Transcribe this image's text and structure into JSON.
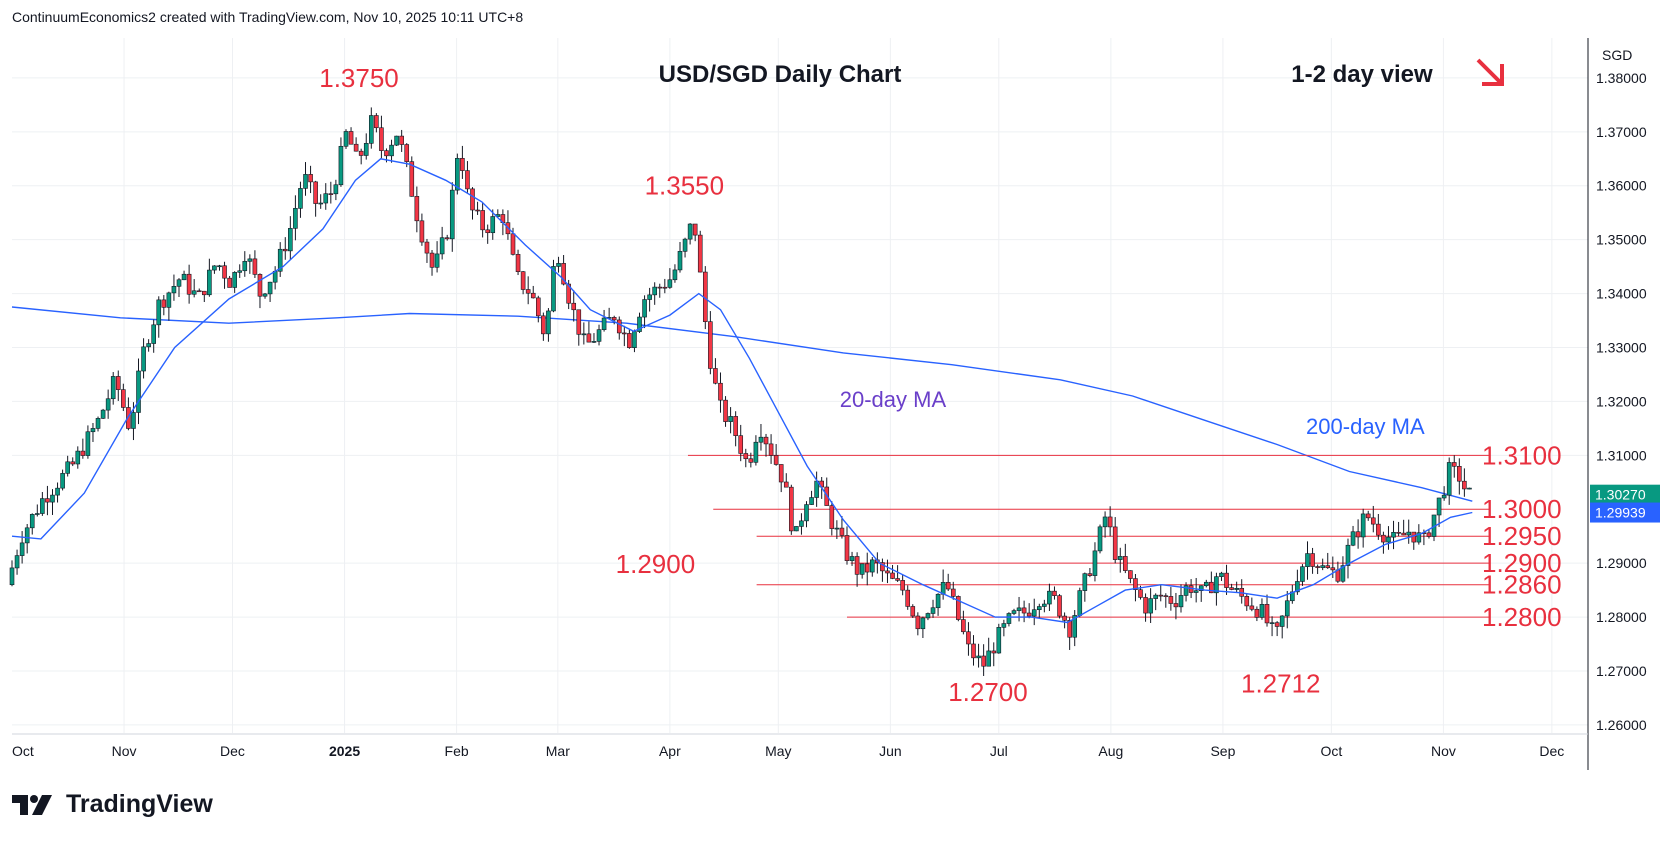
{
  "header": {
    "text": "ContinuumEconomics2 created with TradingView.com, Nov 10, 2025 10:11 UTC+8"
  },
  "logo": {
    "text": "TradingView",
    "icon": "tradingview-logo-icon"
  },
  "chart_data": {
    "type": "candlestick",
    "title": "USD/SGD Daily Chart",
    "subtitle": "1-2 day view",
    "direction_arrow": "down-right-arrow",
    "currency_label": "SGD",
    "y_ticks": [
      "1.38000",
      "1.37000",
      "1.36000",
      "1.35000",
      "1.34000",
      "1.33000",
      "1.32000",
      "1.31000",
      "1.29000",
      "1.28000",
      "1.27000",
      "1.26000"
    ],
    "ylim": [
      1.2585,
      1.3874
    ],
    "x_ticks": [
      {
        "label": "Oct",
        "day": -40,
        "bold": false
      },
      {
        "label": "Nov",
        "day": 31,
        "bold": false
      },
      {
        "label": "Dec",
        "day": 61,
        "bold": false
      },
      {
        "label": "2025",
        "day": 92,
        "bold": true
      },
      {
        "label": "Feb",
        "day": 123,
        "bold": false
      },
      {
        "label": "Mar",
        "day": 151,
        "bold": false
      },
      {
        "label": "Apr",
        "day": 182,
        "bold": false
      },
      {
        "label": "May",
        "day": 212,
        "bold": false
      },
      {
        "label": "Jun",
        "day": 243,
        "bold": false
      },
      {
        "label": "Jul",
        "day": 273,
        "bold": false
      },
      {
        "label": "Aug",
        "day": 304,
        "bold": false
      },
      {
        "label": "Sep",
        "day": 335,
        "bold": false
      },
      {
        "label": "Oct",
        "day": 365,
        "bold": false
      },
      {
        "label": "Nov",
        "day": 396,
        "bold": false
      },
      {
        "label": "Dec",
        "day": 426,
        "bold": false
      }
    ],
    "xlim": [
      0,
      436
    ],
    "colors": {
      "up": "#089981",
      "down": "#f23645",
      "ma": "#2962ff",
      "level": "#e8303f",
      "ma20_label": "#6a3fc9",
      "ma200_label": "#2962ff"
    },
    "price_path": [
      [
        0,
        1.286
      ],
      [
        4,
        1.295
      ],
      [
        10,
        1.302
      ],
      [
        18,
        1.308
      ],
      [
        25,
        1.316
      ],
      [
        30,
        1.324
      ],
      [
        34,
        1.315
      ],
      [
        38,
        1.33
      ],
      [
        42,
        1.338
      ],
      [
        48,
        1.343
      ],
      [
        53,
        1.339
      ],
      [
        58,
        1.346
      ],
      [
        62,
        1.342
      ],
      [
        66,
        1.348
      ],
      [
        70,
        1.34
      ],
      [
        74,
        1.344
      ],
      [
        78,
        1.351
      ],
      [
        82,
        1.362
      ],
      [
        86,
        1.356
      ],
      [
        90,
        1.359
      ],
      [
        94,
        1.37
      ],
      [
        97,
        1.364
      ],
      [
        101,
        1.372
      ],
      [
        104,
        1.366
      ],
      [
        108,
        1.37
      ],
      [
        111,
        1.362
      ],
      [
        114,
        1.353
      ],
      [
        118,
        1.344
      ],
      [
        122,
        1.352
      ],
      [
        125,
        1.368
      ],
      [
        128,
        1.356
      ],
      [
        132,
        1.352
      ],
      [
        137,
        1.355
      ],
      [
        141,
        1.343
      ],
      [
        145,
        1.34
      ],
      [
        149,
        1.332
      ],
      [
        152,
        1.349
      ],
      [
        156,
        1.338
      ],
      [
        160,
        1.33
      ],
      [
        164,
        1.333
      ],
      [
        168,
        1.336
      ],
      [
        172,
        1.331
      ],
      [
        176,
        1.339
      ],
      [
        180,
        1.341
      ],
      [
        184,
        1.343
      ],
      [
        188,
        1.35
      ],
      [
        190,
        1.354
      ],
      [
        192,
        1.342
      ],
      [
        194,
        1.33
      ],
      [
        197,
        1.319
      ],
      [
        201,
        1.315
      ],
      [
        205,
        1.308
      ],
      [
        208,
        1.316
      ],
      [
        212,
        1.31
      ],
      [
        215,
        1.305
      ],
      [
        218,
        1.294
      ],
      [
        221,
        1.302
      ],
      [
        224,
        1.305
      ],
      [
        228,
        1.298
      ],
      [
        232,
        1.292
      ],
      [
        236,
        1.288
      ],
      [
        240,
        1.29
      ],
      [
        244,
        1.287
      ],
      [
        248,
        1.285
      ],
      [
        252,
        1.279
      ],
      [
        256,
        1.283
      ],
      [
        260,
        1.286
      ],
      [
        263,
        1.28
      ],
      [
        266,
        1.274
      ],
      [
        270,
        1.271
      ],
      [
        274,
        1.276
      ],
      [
        278,
        1.28
      ],
      [
        282,
        1.281
      ],
      [
        286,
        1.284
      ],
      [
        290,
        1.283
      ],
      [
        294,
        1.278
      ],
      [
        298,
        1.286
      ],
      [
        301,
        1.292
      ],
      [
        304,
        1.299
      ],
      [
        307,
        1.291
      ],
      [
        311,
        1.286
      ],
      [
        315,
        1.282
      ],
      [
        319,
        1.284
      ],
      [
        323,
        1.283
      ],
      [
        327,
        1.286
      ],
      [
        331,
        1.284
      ],
      [
        335,
        1.288
      ],
      [
        339,
        1.285
      ],
      [
        343,
        1.283
      ],
      [
        347,
        1.281
      ],
      [
        351,
        1.276
      ],
      [
        354,
        1.282
      ],
      [
        357,
        1.288
      ],
      [
        360,
        1.292
      ],
      [
        364,
        1.289
      ],
      [
        368,
        1.288
      ],
      [
        372,
        1.294
      ],
      [
        376,
        1.299
      ],
      [
        380,
        1.296
      ],
      [
        384,
        1.294
      ],
      [
        388,
        1.296
      ],
      [
        392,
        1.294
      ],
      [
        396,
        1.301
      ],
      [
        399,
        1.307
      ],
      [
        402,
        1.306
      ],
      [
        404,
        1.3027
      ]
    ],
    "ma20": [
      [
        0,
        1.295
      ],
      [
        8,
        1.2945
      ],
      [
        20,
        1.303
      ],
      [
        32,
        1.317
      ],
      [
        45,
        1.33
      ],
      [
        60,
        1.339
      ],
      [
        75,
        1.345
      ],
      [
        86,
        1.352
      ],
      [
        95,
        1.361
      ],
      [
        102,
        1.365
      ],
      [
        110,
        1.364
      ],
      [
        120,
        1.361
      ],
      [
        130,
        1.357
      ],
      [
        142,
        1.349
      ],
      [
        152,
        1.343
      ],
      [
        160,
        1.337
      ],
      [
        172,
        1.333
      ],
      [
        182,
        1.336
      ],
      [
        190,
        1.34
      ],
      [
        196,
        1.337
      ],
      [
        204,
        1.328
      ],
      [
        212,
        1.318
      ],
      [
        220,
        1.308
      ],
      [
        230,
        1.298
      ],
      [
        240,
        1.29
      ],
      [
        252,
        1.286
      ],
      [
        262,
        1.283
      ],
      [
        272,
        1.28
      ],
      [
        282,
        1.28
      ],
      [
        292,
        1.279
      ],
      [
        300,
        1.282
      ],
      [
        308,
        1.285
      ],
      [
        318,
        1.286
      ],
      [
        330,
        1.285
      ],
      [
        340,
        1.2845
      ],
      [
        350,
        1.2835
      ],
      [
        360,
        1.286
      ],
      [
        370,
        1.29
      ],
      [
        380,
        1.2935
      ],
      [
        390,
        1.2955
      ],
      [
        398,
        1.2985
      ],
      [
        404,
        1.2994
      ]
    ],
    "ma200": [
      [
        0,
        1.3375
      ],
      [
        30,
        1.3355
      ],
      [
        60,
        1.3345
      ],
      [
        90,
        1.3355
      ],
      [
        110,
        1.3363
      ],
      [
        140,
        1.3358
      ],
      [
        170,
        1.3345
      ],
      [
        200,
        1.332
      ],
      [
        230,
        1.329
      ],
      [
        260,
        1.3268
      ],
      [
        290,
        1.324
      ],
      [
        310,
        1.321
      ],
      [
        330,
        1.3165
      ],
      [
        350,
        1.312
      ],
      [
        370,
        1.307
      ],
      [
        390,
        1.304
      ],
      [
        404,
        1.3015
      ]
    ],
    "levels": [
      {
        "value": 1.31,
        "label": "1.3100",
        "x_start_day": 187
      },
      {
        "value": 1.3,
        "label": "1.3000",
        "x_start_day": 194
      },
      {
        "value": 1.295,
        "label": "1.2950",
        "x_start_day": 206
      },
      {
        "value": 1.29,
        "label": "1.2900",
        "x_start_day": 232
      },
      {
        "value": 1.286,
        "label": "1.2860",
        "x_start_day": 206
      },
      {
        "value": 1.28,
        "label": "1.2800",
        "x_start_day": 231
      }
    ],
    "annotations": [
      {
        "text": "1.3750",
        "day": 96,
        "value": 1.375
      },
      {
        "text": "1.3550",
        "day": 186,
        "value": 1.355
      },
      {
        "text": "1.2900",
        "day": 178,
        "value": 1.29
      },
      {
        "text": "1.2700",
        "day": 270,
        "value": 1.27
      },
      {
        "text": "1.2712",
        "day": 351,
        "value": 1.2712
      }
    ],
    "ma_labels": [
      {
        "text": "20-day MA",
        "day": 229,
        "value": 1.319,
        "series": "ma20"
      },
      {
        "text": "200-day MA",
        "day": 358,
        "value": 1.314,
        "series": "ma200"
      }
    ],
    "last_price": "1.30270",
    "ma20_value": "1.29939"
  }
}
